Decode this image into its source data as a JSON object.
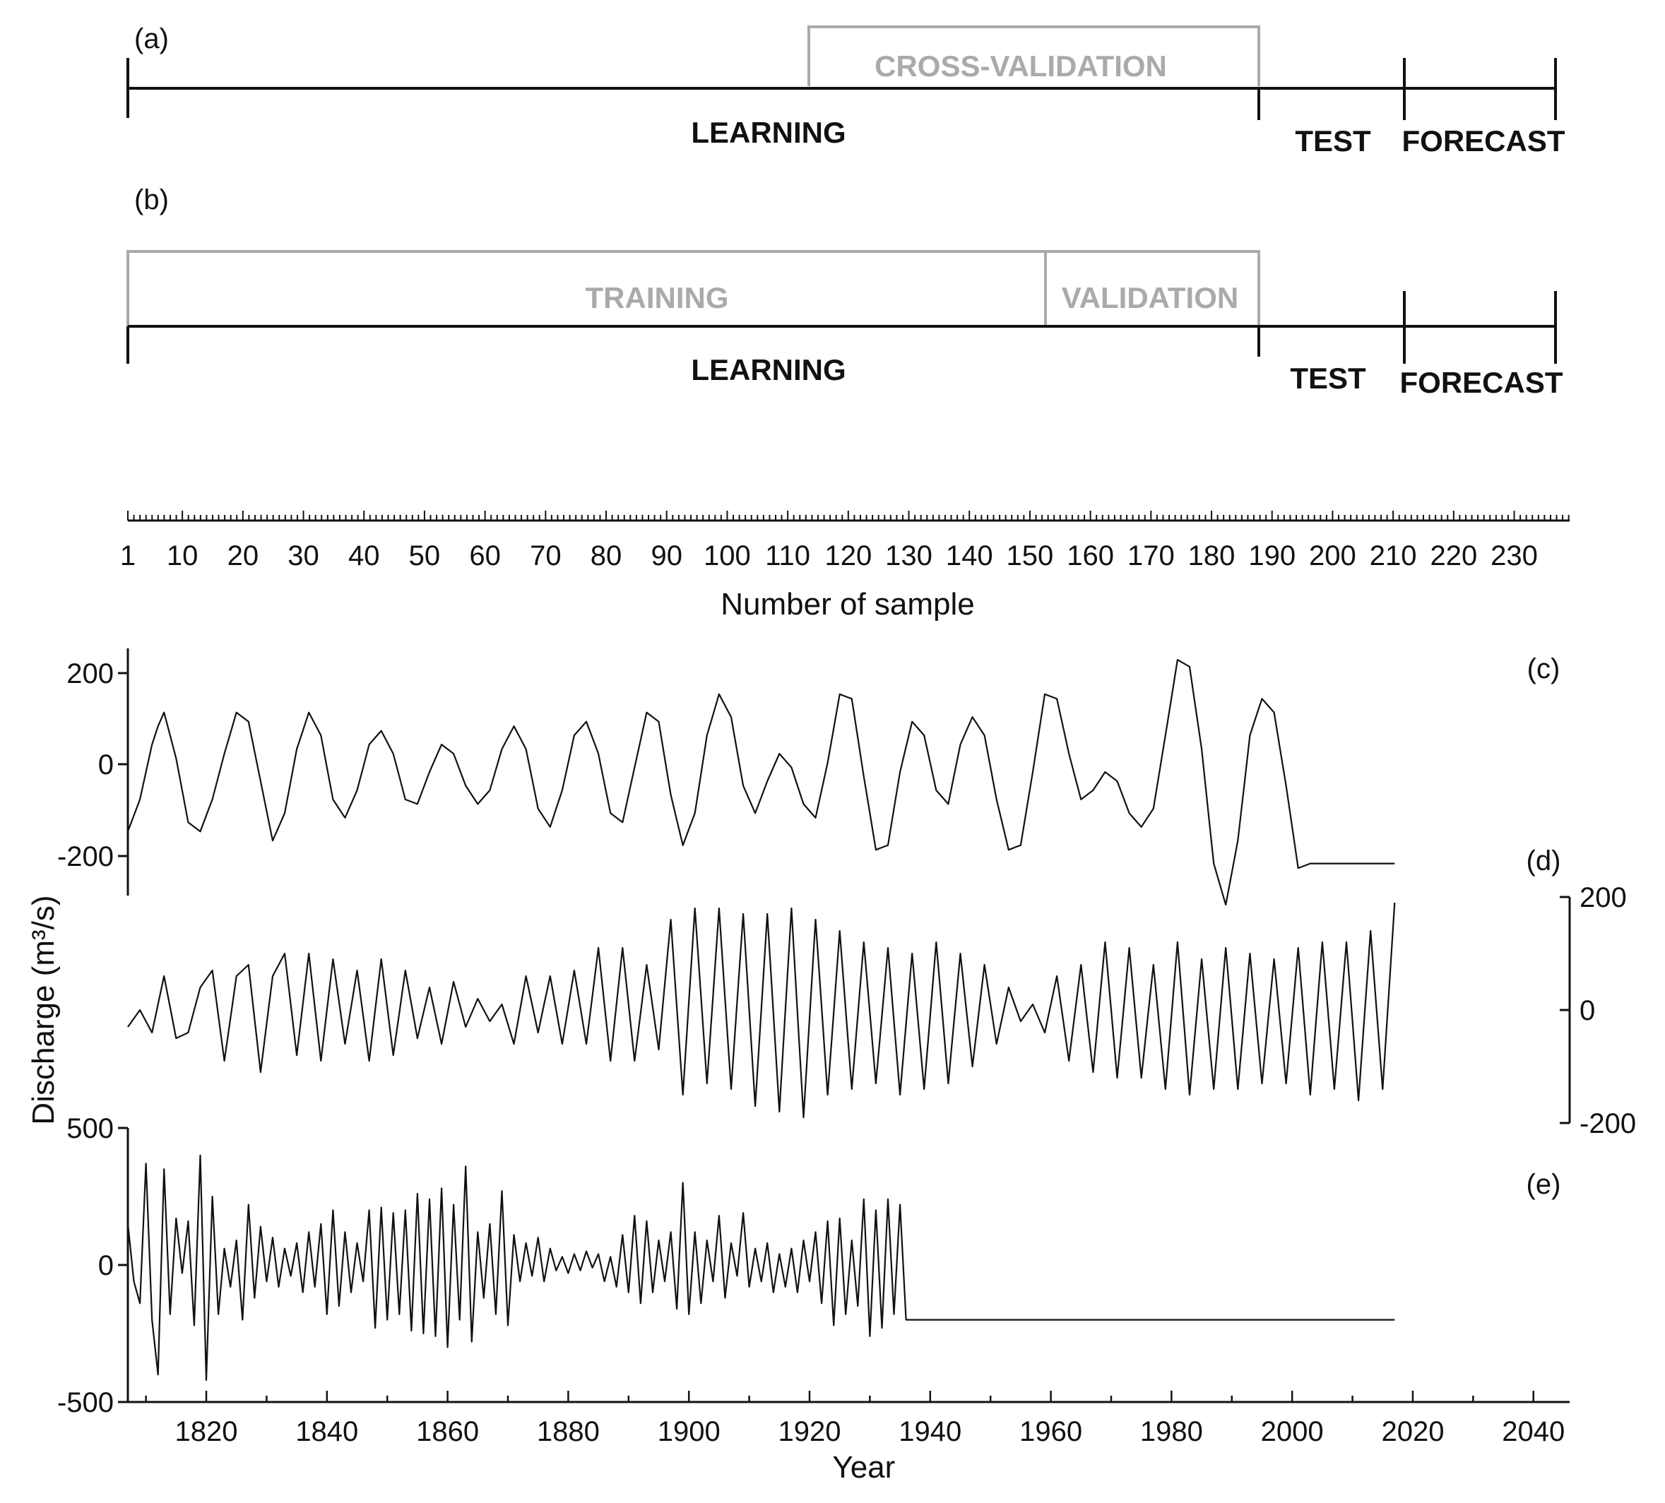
{
  "schema": {
    "panel_a_label": "(a)",
    "panel_b_label": "(b)",
    "cross_validation": "CROSS-VALIDATION",
    "training": "TRAINING",
    "validation": "VALIDATION",
    "learning": "LEARNING",
    "test": "TEST",
    "forecast": "FORECAST",
    "sample_ticks": [
      "1",
      "10",
      "20",
      "30",
      "40",
      "50",
      "60",
      "70",
      "80",
      "90",
      "100",
      "110",
      "120",
      "130",
      "140",
      "150",
      "160",
      "170",
      "180",
      "190",
      "200",
      "210",
      "220",
      "230"
    ],
    "sample_axis_label": "Number of sample",
    "segment_samples": {
      "start": 1,
      "cross_validation_start": 113,
      "validation_start": 152,
      "learning_end": 188,
      "test_end": 212,
      "forecast_end": 237
    }
  },
  "chart_data": [
    {
      "id": "c",
      "type": "line",
      "panel_label": "(c)",
      "x_start": 1807,
      "x_end": 2017,
      "ylim": [
        -270,
        270
      ],
      "yticks": [
        "200",
        "0",
        "-200"
      ],
      "anchors": [
        [
          1807,
          -130
        ],
        [
          1809,
          -60
        ],
        [
          1811,
          60
        ],
        [
          1812,
          100
        ],
        [
          1813,
          130
        ],
        [
          1815,
          30
        ],
        [
          1817,
          -110
        ],
        [
          1819,
          -130
        ],
        [
          1821,
          -60
        ],
        [
          1823,
          40
        ],
        [
          1825,
          130
        ],
        [
          1827,
          110
        ],
        [
          1829,
          -20
        ],
        [
          1831,
          -150
        ],
        [
          1833,
          -90
        ],
        [
          1835,
          50
        ],
        [
          1837,
          130
        ],
        [
          1839,
          80
        ],
        [
          1841,
          -60
        ],
        [
          1843,
          -100
        ],
        [
          1845,
          -40
        ],
        [
          1847,
          60
        ],
        [
          1849,
          90
        ],
        [
          1851,
          40
        ],
        [
          1853,
          -60
        ],
        [
          1855,
          -70
        ],
        [
          1857,
          0
        ],
        [
          1859,
          60
        ],
        [
          1861,
          40
        ],
        [
          1863,
          -30
        ],
        [
          1865,
          -70
        ],
        [
          1867,
          -40
        ],
        [
          1869,
          50
        ],
        [
          1871,
          100
        ],
        [
          1873,
          50
        ],
        [
          1875,
          -80
        ],
        [
          1877,
          -120
        ],
        [
          1879,
          -40
        ],
        [
          1881,
          80
        ],
        [
          1883,
          110
        ],
        [
          1885,
          40
        ],
        [
          1887,
          -90
        ],
        [
          1889,
          -110
        ],
        [
          1891,
          10
        ],
        [
          1893,
          130
        ],
        [
          1895,
          110
        ],
        [
          1897,
          -50
        ],
        [
          1899,
          -160
        ],
        [
          1901,
          -90
        ],
        [
          1903,
          80
        ],
        [
          1905,
          170
        ],
        [
          1907,
          120
        ],
        [
          1909,
          -30
        ],
        [
          1911,
          -90
        ],
        [
          1913,
          -20
        ],
        [
          1915,
          40
        ],
        [
          1917,
          10
        ],
        [
          1919,
          -70
        ],
        [
          1921,
          -100
        ],
        [
          1923,
          20
        ],
        [
          1925,
          170
        ],
        [
          1927,
          160
        ],
        [
          1929,
          -10
        ],
        [
          1931,
          -170
        ],
        [
          1933,
          -160
        ],
        [
          1935,
          0
        ],
        [
          1937,
          110
        ],
        [
          1939,
          80
        ],
        [
          1941,
          -40
        ],
        [
          1943,
          -70
        ],
        [
          1945,
          60
        ],
        [
          1947,
          120
        ],
        [
          1949,
          80
        ],
        [
          1951,
          -60
        ],
        [
          1953,
          -170
        ],
        [
          1955,
          -160
        ],
        [
          1957,
          0
        ],
        [
          1959,
          170
        ],
        [
          1961,
          160
        ],
        [
          1963,
          40
        ],
        [
          1965,
          -60
        ],
        [
          1967,
          -40
        ],
        [
          1969,
          0
        ],
        [
          1971,
          -20
        ],
        [
          1973,
          -90
        ],
        [
          1975,
          -120
        ],
        [
          1977,
          -80
        ],
        [
          1979,
          80
        ],
        [
          1981,
          245
        ],
        [
          1983,
          230
        ],
        [
          1985,
          50
        ],
        [
          1987,
          -200
        ],
        [
          1989,
          -290
        ],
        [
          1991,
          -150
        ],
        [
          1993,
          80
        ],
        [
          1995,
          160
        ],
        [
          1997,
          130
        ],
        [
          1999,
          -30
        ],
        [
          2001,
          -210
        ],
        [
          2003,
          -200
        ]
      ]
    },
    {
      "id": "d",
      "type": "line",
      "panel_label": "(d)",
      "x_start": 1807,
      "x_end": 2017,
      "ylim": [
        -200,
        200
      ],
      "yticks": [
        "200",
        "0",
        "-200"
      ],
      "anchors": [
        [
          1807,
          -30
        ],
        [
          1809,
          0
        ],
        [
          1811,
          -40
        ],
        [
          1813,
          60
        ],
        [
          1815,
          -50
        ],
        [
          1817,
          -40
        ],
        [
          1819,
          40
        ],
        [
          1821,
          70
        ],
        [
          1823,
          -90
        ],
        [
          1825,
          60
        ],
        [
          1827,
          80
        ],
        [
          1829,
          -110
        ],
        [
          1831,
          60
        ],
        [
          1833,
          100
        ],
        [
          1835,
          -80
        ],
        [
          1837,
          100
        ],
        [
          1839,
          -90
        ],
        [
          1841,
          90
        ],
        [
          1843,
          -60
        ],
        [
          1845,
          70
        ],
        [
          1847,
          -90
        ],
        [
          1849,
          90
        ],
        [
          1851,
          -80
        ],
        [
          1853,
          70
        ],
        [
          1855,
          -50
        ],
        [
          1857,
          40
        ],
        [
          1859,
          -60
        ],
        [
          1861,
          50
        ],
        [
          1863,
          -30
        ],
        [
          1865,
          20
        ],
        [
          1867,
          -20
        ],
        [
          1869,
          10
        ],
        [
          1871,
          -60
        ],
        [
          1873,
          60
        ],
        [
          1875,
          -40
        ],
        [
          1877,
          60
        ],
        [
          1879,
          -60
        ],
        [
          1881,
          70
        ],
        [
          1883,
          -60
        ],
        [
          1885,
          110
        ],
        [
          1887,
          -90
        ],
        [
          1889,
          110
        ],
        [
          1891,
          -90
        ],
        [
          1893,
          80
        ],
        [
          1895,
          -70
        ],
        [
          1897,
          160
        ],
        [
          1899,
          -150
        ],
        [
          1901,
          180
        ],
        [
          1903,
          -130
        ],
        [
          1905,
          180
        ],
        [
          1907,
          -140
        ],
        [
          1909,
          170
        ],
        [
          1911,
          -170
        ],
        [
          1913,
          170
        ],
        [
          1915,
          -180
        ],
        [
          1917,
          180
        ],
        [
          1919,
          -190
        ],
        [
          1921,
          160
        ],
        [
          1923,
          -150
        ],
        [
          1925,
          140
        ],
        [
          1927,
          -140
        ],
        [
          1929,
          120
        ],
        [
          1931,
          -130
        ],
        [
          1933,
          110
        ],
        [
          1935,
          -150
        ],
        [
          1937,
          100
        ],
        [
          1939,
          -140
        ],
        [
          1941,
          120
        ],
        [
          1943,
          -130
        ],
        [
          1945,
          100
        ],
        [
          1947,
          -100
        ],
        [
          1949,
          80
        ],
        [
          1951,
          -60
        ],
        [
          1953,
          40
        ],
        [
          1955,
          -20
        ],
        [
          1957,
          10
        ],
        [
          1959,
          -40
        ],
        [
          1961,
          60
        ],
        [
          1963,
          -90
        ],
        [
          1965,
          80
        ],
        [
          1967,
          -110
        ],
        [
          1969,
          120
        ],
        [
          1971,
          -120
        ],
        [
          1973,
          110
        ],
        [
          1975,
          -120
        ],
        [
          1977,
          80
        ],
        [
          1979,
          -140
        ],
        [
          1981,
          120
        ],
        [
          1983,
          -150
        ],
        [
          1985,
          90
        ],
        [
          1987,
          -140
        ],
        [
          1989,
          110
        ],
        [
          1991,
          -140
        ],
        [
          1993,
          100
        ],
        [
          1995,
          -130
        ],
        [
          1997,
          90
        ],
        [
          1999,
          -130
        ],
        [
          2001,
          110
        ],
        [
          2003,
          -150
        ],
        [
          2005,
          120
        ],
        [
          2007,
          -140
        ],
        [
          2009,
          120
        ],
        [
          2011,
          -160
        ],
        [
          2013,
          140
        ],
        [
          2015,
          -140
        ],
        [
          2017,
          190
        ]
      ]
    },
    {
      "id": "e",
      "type": "line",
      "panel_label": "(e)",
      "x_start": 1807,
      "x_end": 2017,
      "ylabel": "Discharge (m³/s)",
      "xlabel": "Year",
      "xlim": [
        1807,
        2046
      ],
      "xticks": [
        "1820",
        "1840",
        "1860",
        "1880",
        "1900",
        "1920",
        "1940",
        "1960",
        "1980",
        "2000",
        "2020",
        "2040"
      ],
      "ylim": [
        -500,
        500
      ],
      "yticks": [
        "500",
        "0",
        "-500"
      ],
      "anchors": [
        [
          1807,
          150
        ],
        [
          1808,
          -60
        ],
        [
          1809,
          -140
        ],
        [
          1810,
          370
        ],
        [
          1811,
          -200
        ],
        [
          1812,
          -400
        ],
        [
          1813,
          350
        ],
        [
          1814,
          -180
        ],
        [
          1815,
          170
        ],
        [
          1816,
          -30
        ],
        [
          1817,
          160
        ],
        [
          1818,
          -220
        ],
        [
          1819,
          400
        ],
        [
          1820,
          -420
        ],
        [
          1821,
          250
        ],
        [
          1822,
          -180
        ],
        [
          1823,
          60
        ],
        [
          1824,
          -80
        ],
        [
          1825,
          90
        ],
        [
          1826,
          -200
        ],
        [
          1827,
          220
        ],
        [
          1828,
          -120
        ],
        [
          1829,
          140
        ],
        [
          1830,
          -60
        ],
        [
          1831,
          100
        ],
        [
          1832,
          -80
        ],
        [
          1833,
          60
        ],
        [
          1834,
          -40
        ],
        [
          1835,
          80
        ],
        [
          1836,
          -100
        ],
        [
          1837,
          120
        ],
        [
          1838,
          -80
        ],
        [
          1839,
          150
        ],
        [
          1840,
          -180
        ],
        [
          1841,
          200
        ],
        [
          1842,
          -150
        ],
        [
          1843,
          120
        ],
        [
          1844,
          -100
        ],
        [
          1845,
          80
        ],
        [
          1846,
          -60
        ],
        [
          1847,
          200
        ],
        [
          1848,
          -230
        ],
        [
          1849,
          210
        ],
        [
          1850,
          -200
        ],
        [
          1851,
          190
        ],
        [
          1852,
          -180
        ],
        [
          1853,
          200
        ],
        [
          1854,
          -240
        ],
        [
          1855,
          260
        ],
        [
          1856,
          -250
        ],
        [
          1857,
          240
        ],
        [
          1858,
          -260
        ],
        [
          1859,
          280
        ],
        [
          1860,
          -300
        ],
        [
          1861,
          220
        ],
        [
          1862,
          -200
        ],
        [
          1863,
          360
        ],
        [
          1864,
          -280
        ],
        [
          1865,
          120
        ],
        [
          1866,
          -120
        ],
        [
          1867,
          150
        ],
        [
          1868,
          -180
        ],
        [
          1869,
          270
        ],
        [
          1870,
          -220
        ],
        [
          1871,
          110
        ],
        [
          1872,
          -60
        ],
        [
          1873,
          80
        ],
        [
          1874,
          -40
        ],
        [
          1875,
          100
        ],
        [
          1876,
          -60
        ],
        [
          1877,
          60
        ],
        [
          1878,
          -20
        ],
        [
          1879,
          30
        ],
        [
          1880,
          -30
        ],
        [
          1881,
          40
        ],
        [
          1882,
          -20
        ],
        [
          1883,
          50
        ],
        [
          1884,
          -10
        ],
        [
          1885,
          40
        ],
        [
          1886,
          -60
        ],
        [
          1887,
          30
        ],
        [
          1888,
          -80
        ],
        [
          1889,
          110
        ],
        [
          1890,
          -100
        ],
        [
          1891,
          180
        ],
        [
          1892,
          -140
        ],
        [
          1893,
          160
        ],
        [
          1894,
          -100
        ],
        [
          1895,
          90
        ],
        [
          1896,
          -60
        ],
        [
          1897,
          120
        ],
        [
          1898,
          -160
        ],
        [
          1899,
          300
        ],
        [
          1900,
          -180
        ],
        [
          1901,
          120
        ],
        [
          1902,
          -140
        ],
        [
          1903,
          90
        ],
        [
          1904,
          -60
        ],
        [
          1905,
          180
        ],
        [
          1906,
          -120
        ],
        [
          1907,
          80
        ],
        [
          1908,
          -40
        ],
        [
          1909,
          190
        ],
        [
          1910,
          -80
        ],
        [
          1911,
          60
        ],
        [
          1912,
          -60
        ],
        [
          1913,
          80
        ],
        [
          1914,
          -100
        ],
        [
          1915,
          40
        ],
        [
          1916,
          -80
        ],
        [
          1917,
          60
        ],
        [
          1918,
          -100
        ],
        [
          1919,
          90
        ],
        [
          1920,
          -60
        ],
        [
          1921,
          120
        ],
        [
          1922,
          -140
        ],
        [
          1923,
          160
        ],
        [
          1924,
          -220
        ],
        [
          1925,
          170
        ],
        [
          1926,
          -180
        ],
        [
          1927,
          90
        ],
        [
          1928,
          -150
        ],
        [
          1929,
          240
        ],
        [
          1930,
          -260
        ],
        [
          1931,
          200
        ],
        [
          1932,
          -230
        ],
        [
          1933,
          240
        ],
        [
          1934,
          -180
        ],
        [
          1935,
          220
        ],
        [
          1936,
          -200
        ]
      ]
    }
  ]
}
